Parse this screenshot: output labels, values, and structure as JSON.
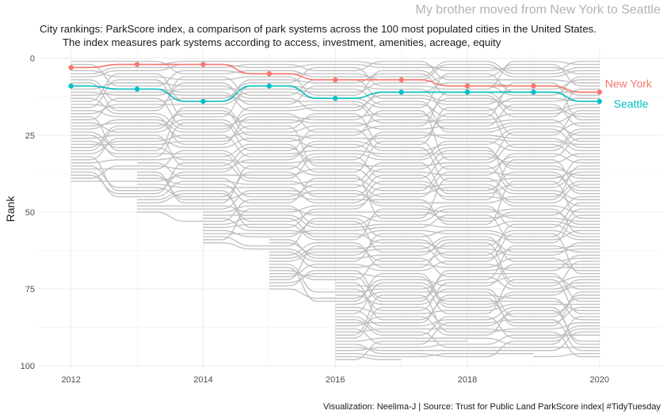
{
  "header": {
    "title": "My brother moved from New York to Seattle",
    "subtitle_line1": "City rankings: ParkScore index, a comparison of park systems across the 100 most populated cities in the United States.",
    "subtitle_line2": "The index measures park systems according to access, investment, amenities, acreage, equity"
  },
  "caption": "Visualization: Neelima-J | Source: Trust for Public Land ParkScore index| #TidyTuesday",
  "chart_data": {
    "type": "line",
    "title": "My brother moved from New York to Seattle",
    "ylabel": "Rank",
    "xlabel": "",
    "x": [
      2012,
      2013,
      2014,
      2015,
      2016,
      2017,
      2018,
      2019,
      2020
    ],
    "x_ticks": [
      2012,
      2014,
      2016,
      2018,
      2020
    ],
    "y_ticks": [
      0,
      25,
      50,
      75,
      100
    ],
    "x_range": [
      2011.5,
      2020.95
    ],
    "y_range": [
      -3,
      101
    ],
    "y_reversed": true,
    "grid": true,
    "cities_per_year": [
      40,
      50,
      60,
      75,
      98,
      98,
      97,
      97,
      97
    ],
    "series": [
      {
        "name": "New York",
        "values": [
          3,
          2,
          2,
          5,
          7,
          7,
          9,
          9,
          11
        ],
        "color": "#F8766D"
      },
      {
        "name": "Seattle",
        "values": [
          9,
          10,
          14,
          9,
          13,
          11,
          11,
          11,
          14
        ],
        "color": "#00BFC4"
      }
    ],
    "background_line_color": "#bfbfbf"
  }
}
